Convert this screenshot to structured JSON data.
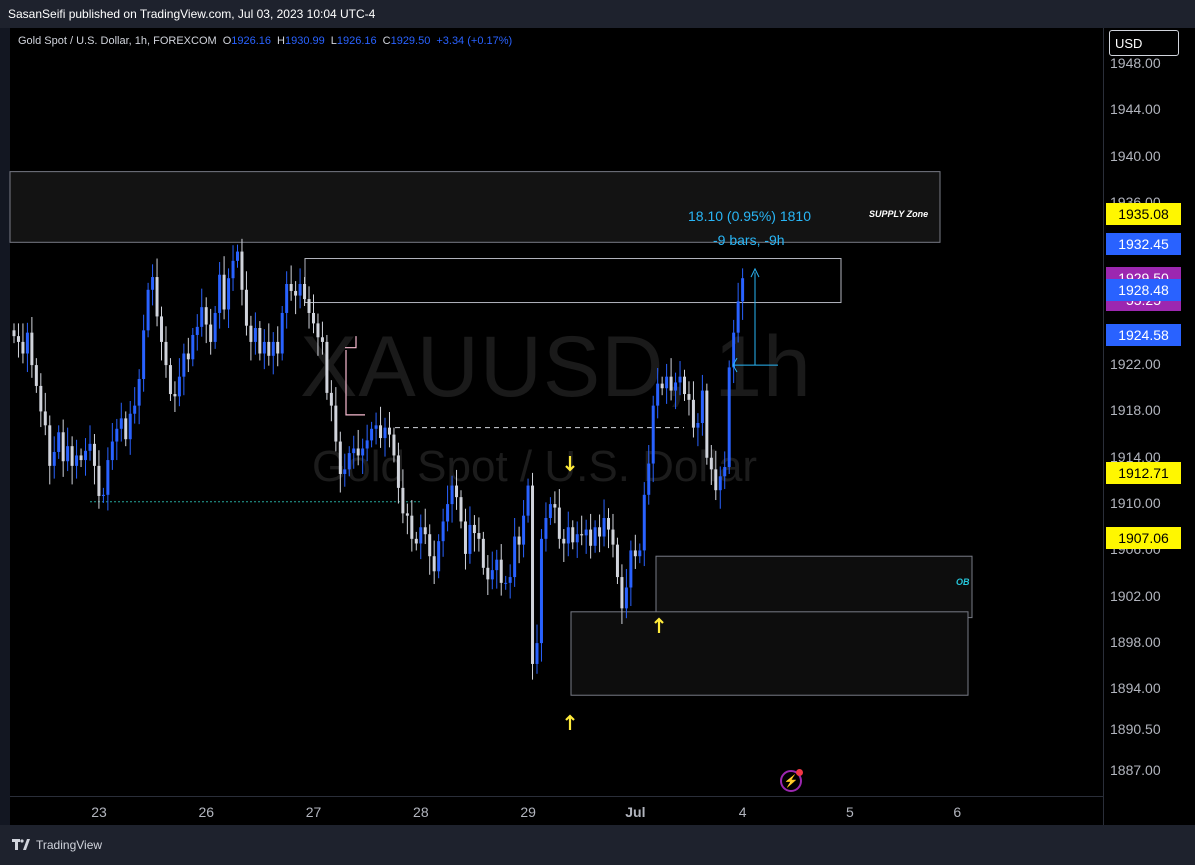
{
  "header": {
    "published": "SasanSeifi published on TradingView.com, Jul 03, 2023 10:04 UTC-4"
  },
  "legend": {
    "symbol": "Gold Spot / U.S. Dollar, 1h, FOREXCOM",
    "o_label": "O",
    "o": "1926.16",
    "h_label": "H",
    "h": "1930.99",
    "l_label": "L",
    "l": "1926.16",
    "c_label": "C",
    "c": "1929.50",
    "change": "+3.34 (+0.17%)"
  },
  "currency": "USD",
  "watermark": {
    "ticker": "XAUUSD, 1h",
    "name": "Gold Spot / U.S. Dollar"
  },
  "measure": {
    "line1": "18.10 (0.95%) 1810",
    "line2": "-9 bars, -9h"
  },
  "zones": {
    "supply": "SUPPLY Zone",
    "ob": "OB"
  },
  "brand": "TradingView",
  "colors": {
    "up": "#2962ff",
    "down": "#d1d4dc",
    "accent": "#29b6f6",
    "yellow": "#ffeb3b",
    "purple": "#9c27b0"
  },
  "badges": [
    {
      "text": "1935.08",
      "bg": "#fff700",
      "fg": "#000000",
      "price": 1935.08
    },
    {
      "text": "1932.45",
      "bg": "#2962ff",
      "fg": "#ffffff",
      "price": 1932.45
    },
    {
      "text": "1929.50",
      "bg": "#9c27b0",
      "fg": "#ffffff",
      "price": 1929.5,
      "sub": "55:25"
    },
    {
      "text": "1928.48",
      "bg": "#2962ff",
      "fg": "#ffffff",
      "price": 1928.48
    },
    {
      "text": "1924.58",
      "bg": "#2962ff",
      "fg": "#ffffff",
      "price": 1924.58
    },
    {
      "text": "1912.71",
      "bg": "#fff700",
      "fg": "#000000",
      "price": 1912.71
    },
    {
      "text": "1907.06",
      "bg": "#fff700",
      "fg": "#000000",
      "price": 1907.06
    }
  ],
  "chart_data": {
    "type": "candlestick",
    "yticks": [
      "1948.00",
      "1944.00",
      "1940.00",
      "1936.00",
      "1922.00",
      "1918.00",
      "1914.00",
      "1910.00",
      "1906.00",
      "1902.00",
      "1898.00",
      "1894.00",
      "1890.50",
      "1887.00"
    ],
    "ytick_values": [
      1948,
      1944,
      1940,
      1936,
      1922,
      1918,
      1914,
      1910,
      1906,
      1902,
      1898,
      1894,
      1890.5,
      1887
    ],
    "xticks": [
      "23",
      "26",
      "27",
      "28",
      "29",
      "Jul",
      "4",
      "5",
      "6"
    ],
    "xtick_index": [
      0,
      24,
      48,
      72,
      96,
      120,
      144,
      168,
      192
    ],
    "ylim": [
      1884.8,
      1951.1
    ],
    "bars_visible": 158,
    "candles_desc": "hourly OHLC series from Jun 23 to Jul 3 (values read approx. from chart)",
    "close_series": [
      1924.5,
      1924.0,
      1923.0,
      1924.8,
      1922.0,
      1920.2,
      1918.0,
      1916.8,
      1913.3,
      1914.5,
      1916.2,
      1913.7,
      1915.0,
      1913.3,
      1914.2,
      1913.8,
      1914.6,
      1915.2,
      1913.3,
      1910.7,
      1910.8,
      1913.8,
      1915.4,
      1916.5,
      1917.4,
      1915.6,
      1917.8,
      1918.5,
      1920.8,
      1925.0,
      1928.5,
      1929.6,
      1926.2,
      1924.0,
      1922.0,
      1919.5,
      1919.3,
      1921.0,
      1923.0,
      1922.5,
      1924.6,
      1925.3,
      1927.0,
      1925.5,
      1924.0,
      1926.5,
      1929.8,
      1926.8,
      1929.5,
      1931.0,
      1931.8,
      1928.5,
      1925.4,
      1924.0,
      1925.2,
      1923.0,
      1924.0,
      1922.8,
      1924.0,
      1923.0,
      1926.5,
      1929.0,
      1928.4,
      1928.0,
      1929.0,
      1927.7,
      1926.5,
      1925.6,
      1924.4,
      1924.0,
      1919.6,
      1918.5,
      1915.4,
      1912.6,
      1913.0,
      1914.4,
      1914.8,
      1914.2,
      1914.8,
      1915.5,
      1916.5,
      1916.8,
      1915.7,
      1916.6,
      1916.0,
      1914.2,
      1911.4,
      1909.2,
      1909.0,
      1907.0,
      1906.6,
      1908.0,
      1907.4,
      1905.5,
      1904.2,
      1906.8,
      1908.5,
      1910.0,
      1911.6,
      1910.6,
      1908.5,
      1905.7,
      1908.2,
      1907.5,
      1907.0,
      1904.5,
      1903.5,
      1904.3,
      1905.2,
      1903.2,
      1903.2,
      1903.7,
      1907.2,
      1906.5,
      1909.0,
      1911.6,
      1896.2,
      1898.0,
      1907.0,
      1908.8,
      1910.0,
      1909.7,
      1907.0,
      1906.6,
      1908.0,
      1906.7,
      1907.4,
      1907.3,
      1907.8,
      1906.4,
      1908.0,
      1907.2,
      1908.8,
      1907.8,
      1906.5,
      1903.7,
      1901.0,
      1902.8,
      1906.0,
      1905.5,
      1906.0,
      1910.8,
      1913.5,
      1918.5,
      1920.4,
      1920.0,
      1921.0,
      1919.8,
      1920.5,
      1921.0,
      1919.5,
      1919.0,
      1916.6,
      1917.0,
      1919.8,
      1914.0,
      1913.0,
      1911.2,
      1912.4,
      1913.2,
      1921.8,
      1924.8,
      1927.5,
      1929.5
    ]
  }
}
